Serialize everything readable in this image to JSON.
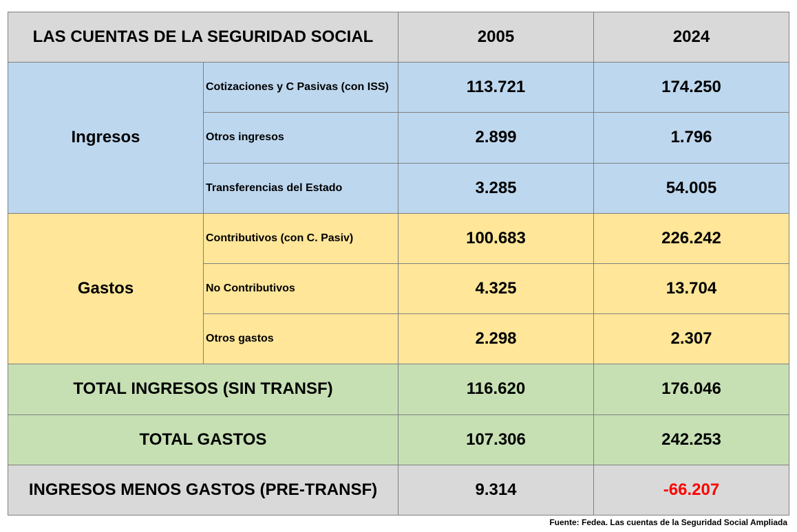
{
  "header": {
    "title": "LAS CUENTAS DE LA SEGURIDAD SOCIAL",
    "years": [
      "2005",
      "2024"
    ]
  },
  "groups": [
    {
      "label": "Ingresos",
      "rows": [
        {
          "label": "Cotizaciones y C Pasivas (con ISS)",
          "values": [
            "113.721",
            "174.250"
          ]
        },
        {
          "label": "Otros ingresos",
          "values": [
            "2.899",
            "1.796"
          ]
        },
        {
          "label": "Transferencias del Estado",
          "values": [
            "3.285",
            "54.005"
          ]
        }
      ]
    },
    {
      "label": "Gastos",
      "rows": [
        {
          "label": "Contributivos (con C. Pasiv)",
          "values": [
            "100.683",
            "226.242"
          ]
        },
        {
          "label": "No Contributivos",
          "values": [
            "4.325",
            "13.704"
          ]
        },
        {
          "label": "Otros gastos",
          "values": [
            "2.298",
            "2.307"
          ]
        }
      ]
    }
  ],
  "totals": [
    {
      "label": "TOTAL INGRESOS (SIN TRANSF)",
      "values": [
        "116.620",
        "176.046"
      ]
    },
    {
      "label": "TOTAL GASTOS",
      "values": [
        "107.306",
        "242.253"
      ]
    },
    {
      "label": "INGRESOS MENOS GASTOS (PRE-TRANSF)",
      "values": [
        "9.314",
        "-66.207"
      ]
    }
  ],
  "source": "Fuente: Fedea. Las cuentas de la Seguridad Social Ampliada"
}
